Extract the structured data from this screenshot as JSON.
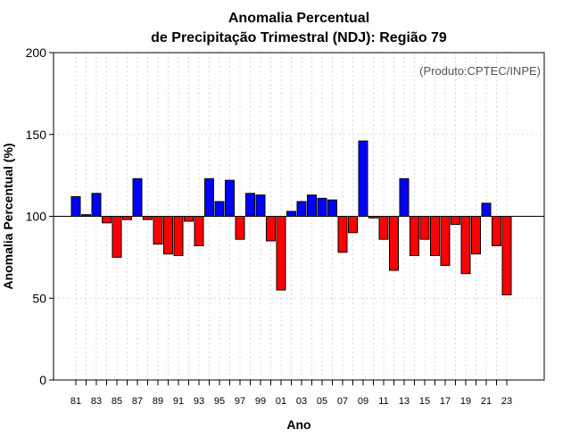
{
  "chart_data": {
    "type": "bar",
    "title": "Anomalia Percentual",
    "subtitle": "de Precipitação Trimestral (NDJ): Região 79",
    "xlabel": "Ano",
    "ylabel": "Anomalia Percentual (%)",
    "ylim": [
      0,
      200
    ],
    "yticks": [
      0,
      50,
      100,
      150,
      200
    ],
    "baseline": 100,
    "credit": "(Produto:CPTEC/INPE)",
    "grid": true,
    "colors": {
      "above": "#0000ff",
      "below": "#ff0000",
      "baseline": "#000000",
      "grid": "#d9d9d9"
    },
    "categories": [
      "81",
      "82",
      "83",
      "84",
      "85",
      "86",
      "87",
      "88",
      "89",
      "90",
      "91",
      "92",
      "93",
      "94",
      "95",
      "96",
      "97",
      "98",
      "99",
      "00",
      "01",
      "02",
      "03",
      "04",
      "05",
      "06",
      "07",
      "08",
      "09",
      "10",
      "11",
      "12",
      "13",
      "14",
      "15",
      "16",
      "17",
      "18",
      "19",
      "20",
      "21",
      "22",
      "23"
    ],
    "xtick_labels": [
      "81",
      "83",
      "85",
      "87",
      "89",
      "91",
      "93",
      "95",
      "97",
      "99",
      "01",
      "03",
      "05",
      "07",
      "09",
      "11",
      "13",
      "15",
      "17",
      "19",
      "21",
      "23"
    ],
    "values": [
      112,
      101,
      114,
      96,
      75,
      98,
      123,
      98,
      83,
      77,
      76,
      97,
      82,
      123,
      109,
      122,
      86,
      114,
      113,
      85,
      55,
      103,
      109,
      113,
      111,
      110,
      78,
      90,
      146,
      99,
      86,
      67,
      123,
      76,
      86,
      76,
      70,
      95,
      65,
      77,
      108,
      82,
      52
    ]
  }
}
